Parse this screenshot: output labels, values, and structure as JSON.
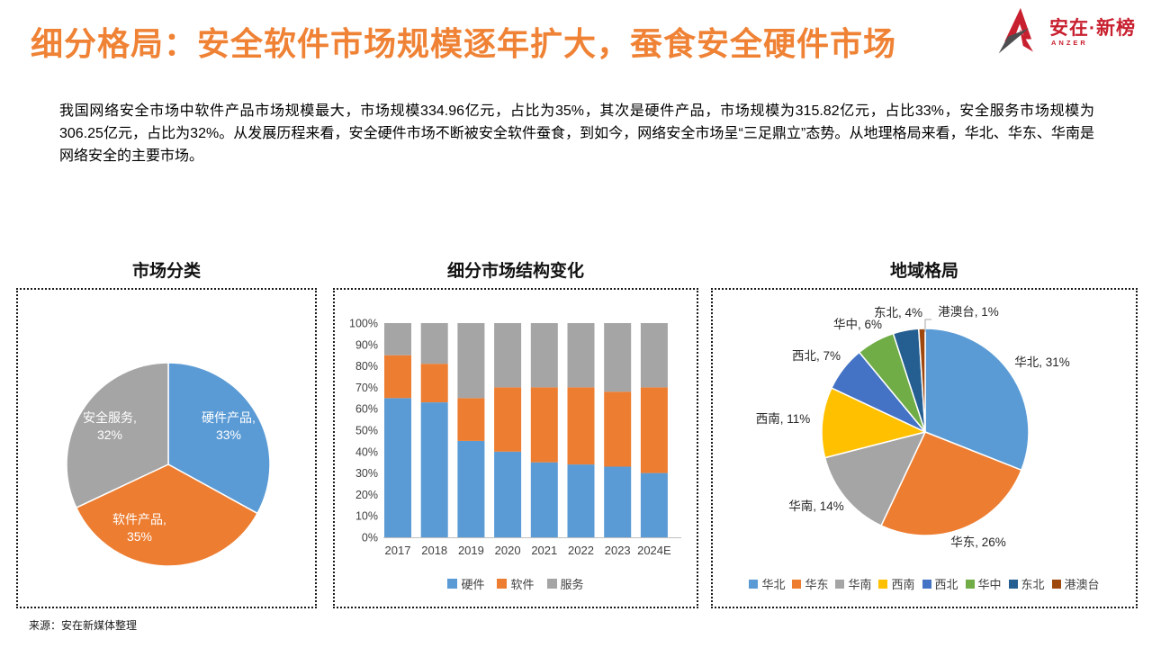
{
  "slide": {
    "title": "细分格局：安全软件市场规模逐年扩大，蚕食安全硬件市场",
    "paragraph": "我国网络安全市场中软件产品市场规模最大，市场规模334.96亿元，占比为35%，其次是硬件产品，市场规模为315.82亿元，占比33%，安全服务市场规模为306.25亿元，占比为32%。从发展历程来看，安全硬件市场不断被安全软件蚕食，到如今，网络安全市场呈“三足鼎立”态势。从地理格局来看，华北、华东、华南是网络安全的主要市场。",
    "source": "来源：安在新媒体整理",
    "title_color": "#EF8235"
  },
  "logo": {
    "name": "安在·新榜",
    "subname": "ANZER",
    "brand_color": "#C8202F"
  },
  "chart_data": [
    {
      "type": "pie",
      "title": "市场分类",
      "slices": [
        {
          "name": "硬件产品",
          "value": 33,
          "color": "#5B9BD5"
        },
        {
          "name": "软件产品",
          "value": 35,
          "color": "#ED7D31"
        },
        {
          "name": "安全服务",
          "value": 32,
          "color": "#A5A5A5"
        }
      ],
      "data_labels": "inside, white, two lines: name, / value%",
      "legend": "none"
    },
    {
      "type": "bar",
      "stacked": true,
      "title": "细分市场结构变化",
      "categories": [
        "2017",
        "2018",
        "2019",
        "2020",
        "2021",
        "2022",
        "2023",
        "2024E"
      ],
      "series": [
        {
          "name": "硬件",
          "color": "#5B9BD5",
          "values": [
            65,
            63,
            45,
            40,
            35,
            34,
            33,
            30
          ]
        },
        {
          "name": "软件",
          "color": "#ED7D31",
          "values": [
            20,
            18,
            20,
            30,
            35,
            36,
            35,
            40
          ]
        },
        {
          "name": "服务",
          "color": "#A5A5A5",
          "values": [
            15,
            19,
            35,
            30,
            30,
            30,
            32,
            30
          ]
        }
      ],
      "ylim": [
        0,
        100
      ],
      "ytick_step": 10,
      "ytick_format": "percent",
      "grid": false,
      "legend_position": "bottom"
    },
    {
      "type": "pie",
      "title": "地域格局",
      "slices": [
        {
          "name": "华北",
          "value": 31,
          "color": "#5B9BD5"
        },
        {
          "name": "华东",
          "value": 26,
          "color": "#ED7D31"
        },
        {
          "name": "华南",
          "value": 14,
          "color": "#A5A5A5"
        },
        {
          "name": "西南",
          "value": 11,
          "color": "#FFC000"
        },
        {
          "name": "西北",
          "value": 7,
          "color": "#4472C4"
        },
        {
          "name": "华中",
          "value": 6,
          "color": "#70AD47"
        },
        {
          "name": "东北",
          "value": 4,
          "color": "#255E91"
        },
        {
          "name": "港澳台",
          "value": 1,
          "color": "#9E480E"
        }
      ],
      "data_labels": "outside: name, value%",
      "legend_position": "bottom"
    }
  ]
}
